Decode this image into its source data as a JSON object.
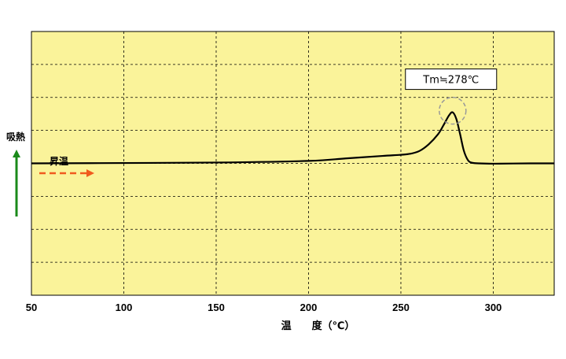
{
  "chart_data": {
    "type": "line",
    "xlabel": "温　　度（℃）",
    "ylabel": "吸熱",
    "xlim": [
      50,
      333
    ],
    "ylim": [
      -8,
      8
    ],
    "x_ticks": [
      50,
      100,
      150,
      200,
      250,
      300
    ],
    "grid": true,
    "legend": "none",
    "background_color": "#faf39a",
    "line_color": "#000000",
    "ylabel_arrow_color": "#1a8a1a",
    "heating_arrow_color": "#f05a1e",
    "heating_label": "昇温",
    "series": [
      {
        "x": [
          50,
          100,
          150,
          200,
          220,
          240,
          250,
          255,
          260,
          265,
          270,
          273,
          276,
          278,
          280,
          282,
          284,
          286,
          288,
          292,
          300,
          320,
          333
        ],
        "y": [
          0,
          0.02,
          0.05,
          0.15,
          0.3,
          0.45,
          0.52,
          0.58,
          0.75,
          1.15,
          1.75,
          2.3,
          2.9,
          3.1,
          2.7,
          1.8,
          0.8,
          0.25,
          0.05,
          0.0,
          -0.02,
          0.0,
          0.0
        ]
      }
    ],
    "annotations": [
      {
        "text": "Tm≒278℃",
        "x": 278,
        "y": 3.1
      }
    ]
  }
}
